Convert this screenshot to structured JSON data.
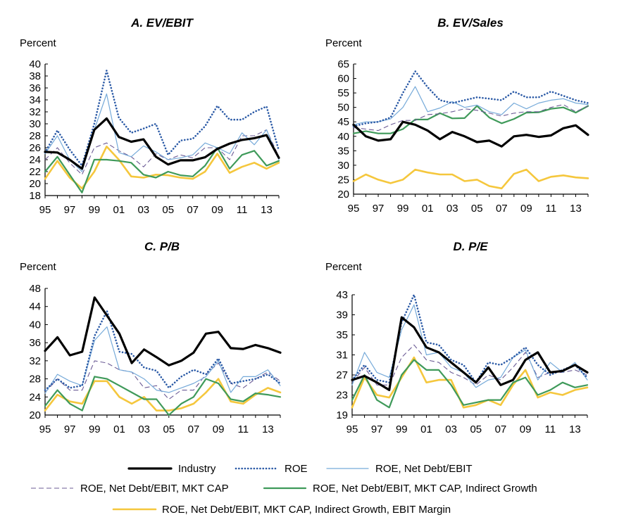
{
  "colors": {
    "industry": "#000000",
    "roe": "#2b5aa6",
    "roe_nd": "#76aad9",
    "roe_nd_mc": "#6b5b95",
    "roe_nd_mc_ig": "#3f9a5a",
    "roe_nd_mc_ig_em": "#f5c73d"
  },
  "legend": {
    "industry": "Industry",
    "roe": "ROE",
    "roe_nd": "ROE, Net Debt/EBIT",
    "roe_nd_mc": "ROE, Net Debt/EBIT, MKT CAP",
    "roe_nd_mc_ig": "ROE, Net Debt/EBIT, MKT CAP, Indirect Growth",
    "roe_nd_mc_ig_em": "ROE, Net Debt/EBIT, MKT CAP, Indirect Growth, EBIT Margin"
  },
  "chart_data": [
    {
      "type": "line",
      "title": "A. EV/EBIT",
      "ylabel": "Percent",
      "ylim": [
        18,
        40
      ],
      "yticks": [
        "18",
        "20",
        "22",
        "24",
        "26",
        "28",
        "30",
        "32",
        "34",
        "36",
        "38",
        "40"
      ],
      "xlim": [
        1995,
        2014
      ],
      "xticks": [
        "95",
        "97",
        "99",
        "01",
        "03",
        "05",
        "07",
        "09",
        "11",
        "13"
      ],
      "x": [
        1995,
        1996,
        1997,
        1998,
        1999,
        2000,
        2001,
        2002,
        2003,
        2004,
        2005,
        2006,
        2007,
        2008,
        2009,
        2010,
        2011,
        2012,
        2013,
        2014
      ],
      "series": [
        {
          "name": "Industry",
          "values": [
            25.3,
            25.2,
            24.0,
            22.5,
            29.0,
            30.9,
            27.8,
            27.0,
            27.4,
            24.5,
            23.2,
            23.9,
            23.9,
            24.4,
            25.8,
            26.7,
            27.3,
            27.6,
            28.1,
            24.3
          ]
        },
        {
          "name": "ROE",
          "values": [
            25.2,
            28.9,
            25.7,
            23.0,
            30.0,
            38.9,
            31.0,
            28.5,
            29.2,
            30.0,
            24.8,
            27.2,
            27.5,
            29.6,
            33.0,
            30.7,
            30.7,
            32.0,
            32.9,
            25.5
          ]
        },
        {
          "name": "ROE, Net Debt/EBIT",
          "values": [
            25.0,
            28.0,
            24.0,
            22.0,
            29.0,
            35.0,
            25.2,
            24.5,
            26.3,
            25.3,
            24.0,
            24.3,
            24.8,
            26.8,
            26.0,
            25.0,
            28.5,
            26.5,
            29.0,
            24.0
          ]
        },
        {
          "name": "ROE, Net Debt/EBIT, MKT CAP",
          "values": [
            24.0,
            26.0,
            23.5,
            21.5,
            26.0,
            26.8,
            25.5,
            24.5,
            22.8,
            25.0,
            24.0,
            24.8,
            24.3,
            26.0,
            26.0,
            24.0,
            28.0,
            28.0,
            29.0,
            24.5
          ]
        },
        {
          "name": "ROE, Net Debt/EBIT, MKT CAP, Indirect Growth",
          "values": [
            22.0,
            24.5,
            21.5,
            18.5,
            24.0,
            24.0,
            23.8,
            23.5,
            21.5,
            21.0,
            22.0,
            21.4,
            21.2,
            23.0,
            26.0,
            22.5,
            24.8,
            25.5,
            23.0,
            23.8
          ]
        },
        {
          "name": "ROE, Net Debt/EBIT, MKT CAP, Indirect Growth, EBIT Margin",
          "values": [
            20.8,
            23.8,
            21.0,
            19.2,
            22.0,
            26.2,
            24.0,
            21.2,
            21.0,
            21.5,
            21.4,
            21.0,
            20.8,
            22.0,
            25.0,
            21.8,
            22.8,
            23.5,
            22.5,
            23.5
          ]
        }
      ]
    },
    {
      "type": "line",
      "title": "B. EV/Sales",
      "ylabel": "Percent",
      "ylim": [
        20,
        65
      ],
      "yticks": [
        "20",
        "25",
        "30",
        "35",
        "40",
        "45",
        "50",
        "55",
        "60",
        "65"
      ],
      "xlim": [
        1995,
        2014
      ],
      "xticks": [
        "95",
        "97",
        "99",
        "01",
        "03",
        "05",
        "07",
        "09",
        "11",
        "13"
      ],
      "x": [
        1995,
        1996,
        1997,
        1998,
        1999,
        2000,
        2001,
        2002,
        2003,
        2004,
        2005,
        2006,
        2007,
        2008,
        2009,
        2010,
        2011,
        2012,
        2013,
        2014
      ],
      "series": [
        {
          "name": "Industry",
          "values": [
            44.0,
            40.0,
            38.5,
            39.0,
            45.0,
            44.0,
            42.0,
            39.0,
            41.5,
            40.0,
            38.0,
            38.5,
            36.5,
            40.0,
            40.5,
            39.8,
            40.3,
            42.8,
            43.8,
            40.5
          ]
        },
        {
          "name": "ROE",
          "values": [
            43.5,
            44.5,
            45.0,
            46.5,
            55.0,
            62.5,
            57.0,
            52.5,
            51.5,
            52.5,
            53.5,
            53.0,
            52.5,
            55.5,
            53.5,
            53.5,
            55.5,
            54.0,
            52.5,
            51.5
          ]
        },
        {
          "name": "ROE, Net Debt/EBIT",
          "values": [
            44.0,
            45.0,
            45.0,
            46.0,
            50.0,
            57.2,
            48.5,
            49.8,
            52.0,
            50.0,
            50.8,
            48.5,
            47.5,
            51.5,
            49.5,
            51.5,
            52.5,
            53.0,
            51.5,
            51.0
          ]
        },
        {
          "name": "ROE, Net Debt/EBIT, MKT CAP",
          "values": [
            43.0,
            42.5,
            42.0,
            44.0,
            45.5,
            45.5,
            47.5,
            47.8,
            48.5,
            49.5,
            49.0,
            48.0,
            47.0,
            48.0,
            48.5,
            48.5,
            50.0,
            51.0,
            48.5,
            50.5
          ]
        },
        {
          "name": "ROE, Net Debt/EBIT, MKT CAP, Indirect Growth",
          "values": [
            41.0,
            41.8,
            41.0,
            41.0,
            42.5,
            45.8,
            45.8,
            48.0,
            46.2,
            46.3,
            50.5,
            46.5,
            44.5,
            46.0,
            48.2,
            48.3,
            49.5,
            50.0,
            48.2,
            50.5
          ]
        },
        {
          "name": "ROE, Net Debt/EBIT, MKT CAP, Indirect Growth, EBIT Margin",
          "values": [
            24.5,
            26.8,
            25.0,
            23.8,
            25.0,
            28.5,
            27.5,
            26.8,
            26.8,
            24.5,
            25.0,
            22.8,
            22.0,
            27.0,
            28.5,
            24.5,
            26.0,
            26.5,
            25.8,
            25.5
          ]
        }
      ]
    },
    {
      "type": "line",
      "title": "C. P/B",
      "ylabel": "Percent",
      "ylim": [
        20,
        48
      ],
      "yticks": [
        "20",
        "24",
        "28",
        "32",
        "36",
        "40",
        "44",
        "48"
      ],
      "xlim": [
        1995,
        2014
      ],
      "xticks": [
        "95",
        "97",
        "99",
        "01",
        "03",
        "05",
        "07",
        "09",
        "11",
        "13"
      ],
      "x": [
        1995,
        1996,
        1997,
        1998,
        1999,
        2000,
        2001,
        2002,
        2003,
        2004,
        2005,
        2006,
        2007,
        2008,
        2009,
        2010,
        2011,
        2012,
        2013,
        2014
      ],
      "series": [
        {
          "name": "Industry",
          "values": [
            34.2,
            37.2,
            33.2,
            34.0,
            46.0,
            42.0,
            38.0,
            31.5,
            34.5,
            32.8,
            31.0,
            32.0,
            33.8,
            38.0,
            38.4,
            34.8,
            34.6,
            35.5,
            34.8,
            33.8
          ]
        },
        {
          "name": "ROE",
          "values": [
            25.5,
            28.0,
            26.0,
            26.5,
            37.5,
            43.0,
            34.0,
            33.5,
            30.5,
            29.8,
            26.0,
            28.5,
            30.0,
            29.0,
            32.5,
            27.0,
            27.5,
            28.0,
            29.0,
            27.0
          ]
        },
        {
          "name": "ROE, Net Debt/EBIT",
          "values": [
            24.8,
            29.0,
            27.5,
            26.5,
            36.5,
            39.5,
            30.0,
            29.5,
            28.0,
            25.5,
            25.0,
            26.0,
            27.0,
            28.5,
            32.0,
            25.0,
            28.5,
            28.5,
            30.0,
            26.5
          ]
        },
        {
          "name": "ROE, Net Debt/EBIT, MKT CAP",
          "values": [
            25.0,
            28.0,
            25.5,
            25.5,
            32.0,
            31.5,
            30.0,
            29.5,
            26.0,
            26.5,
            23.5,
            25.5,
            25.5,
            29.0,
            31.5,
            27.0,
            26.0,
            28.0,
            29.5,
            27.5
          ]
        },
        {
          "name": "ROE, Net Debt/EBIT, MKT CAP, Indirect Growth",
          "values": [
            22.0,
            25.5,
            22.5,
            21.0,
            28.5,
            28.0,
            26.5,
            25.0,
            23.5,
            23.5,
            20.0,
            22.5,
            24.0,
            28.0,
            27.0,
            23.5,
            23.0,
            24.8,
            24.5,
            24.0
          ]
        },
        {
          "name": "ROE, Net Debt/EBIT, MKT CAP, Indirect Growth, EBIT Margin",
          "values": [
            21.0,
            24.5,
            23.0,
            22.5,
            27.5,
            27.5,
            24.0,
            22.5,
            24.0,
            21.0,
            21.0,
            21.5,
            22.5,
            25.0,
            28.0,
            23.0,
            22.5,
            24.5,
            26.0,
            25.0
          ]
        }
      ]
    },
    {
      "type": "line",
      "title": "D. P/E",
      "ylabel": "Percent",
      "ylim": [
        19,
        43
      ],
      "yticks": [
        "19",
        "23",
        "27",
        "31",
        "35",
        "39",
        "43"
      ],
      "xlim": [
        1995,
        2014
      ],
      "xticks": [
        "95",
        "97",
        "99",
        "01",
        "03",
        "05",
        "07",
        "09",
        "11",
        "13"
      ],
      "x": [
        1995,
        1996,
        1997,
        1998,
        1999,
        2000,
        2001,
        2002,
        2003,
        2004,
        2005,
        2006,
        2007,
        2008,
        2009,
        2010,
        2011,
        2012,
        2013,
        2014
      ],
      "series": [
        {
          "name": "Industry",
          "values": [
            26.0,
            26.8,
            25.5,
            24.0,
            38.5,
            36.5,
            32.5,
            31.5,
            29.5,
            27.5,
            25.5,
            28.5,
            25.0,
            26.0,
            30.0,
            31.5,
            27.5,
            27.8,
            29.0,
            27.5
          ]
        },
        {
          "name": "ROE",
          "values": [
            26.0,
            29.0,
            26.0,
            25.5,
            37.5,
            43.0,
            33.5,
            33.0,
            30.0,
            29.0,
            25.5,
            29.5,
            29.0,
            30.5,
            32.5,
            29.0,
            27.0,
            28.0,
            29.0,
            26.5
          ]
        },
        {
          "name": "ROE, Net Debt/EBIT",
          "values": [
            25.0,
            31.5,
            27.5,
            26.5,
            36.0,
            41.0,
            31.0,
            31.5,
            28.5,
            27.5,
            24.5,
            26.0,
            26.5,
            30.5,
            32.0,
            26.0,
            29.5,
            27.5,
            29.5,
            26.0
          ]
        },
        {
          "name": "ROE, Net Debt/EBIT, MKT CAP",
          "values": [
            25.5,
            28.5,
            25.0,
            25.0,
            30.5,
            33.0,
            30.0,
            29.5,
            27.5,
            26.5,
            25.0,
            27.0,
            26.0,
            28.5,
            31.5,
            26.5,
            27.5,
            27.5,
            28.0,
            27.0
          ]
        },
        {
          "name": "ROE, Net Debt/EBIT, MKT CAP, Indirect Growth",
          "values": [
            22.0,
            27.0,
            22.0,
            20.5,
            27.0,
            30.0,
            28.0,
            28.0,
            25.0,
            21.0,
            21.5,
            22.0,
            22.0,
            25.5,
            26.5,
            23.0,
            24.0,
            25.5,
            24.5,
            25.0
          ]
        },
        {
          "name": "ROE, Net Debt/EBIT, MKT CAP, Indirect Growth, EBIT Margin",
          "values": [
            20.5,
            26.5,
            23.0,
            22.5,
            26.5,
            30.5,
            25.5,
            26.0,
            26.0,
            20.5,
            21.0,
            22.0,
            21.0,
            25.0,
            28.0,
            22.5,
            23.5,
            23.0,
            24.0,
            24.5
          ]
        }
      ]
    }
  ]
}
